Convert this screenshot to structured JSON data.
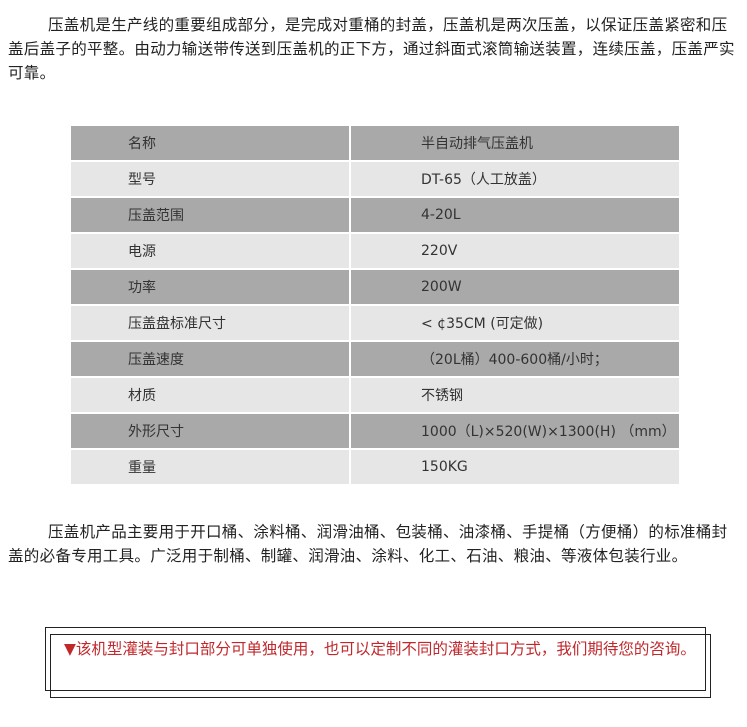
{
  "intro": "压盖机是生产线的重要组成部分，是完成对重桶的封盖，压盖机是两次压盖，以保证压盖紧密和压盖后盖子的平整。由动力输送带传送到压盖机的正下方，通过斜面式滚筒输送装置，连续压盖，压盖严实可靠。",
  "specs": [
    {
      "label": "名称",
      "value": "半自动排气压盖机"
    },
    {
      "label": "型号",
      "value": "DT-65（人工放盖）"
    },
    {
      "label": "压盖范围",
      "value": "4-20L"
    },
    {
      "label": "电源",
      "value": "220V"
    },
    {
      "label": "功率",
      "value": "200W"
    },
    {
      "label": "压盖盘标准尺寸",
      "value": "< ¢35CM (可定做)"
    },
    {
      "label": "压盖速度",
      "value": "（20L桶）400-600桶/小时；"
    },
    {
      "label": "材质",
      "value": "不锈钢"
    },
    {
      "label": "外形尺寸",
      "value": "1000（L)×520(W)×1300(H) （mm）"
    },
    {
      "label": "重量",
      "value": "150KG"
    }
  ],
  "usage": "压盖机产品主要用于开口桶、涂料桶、润滑油桶、包装桶、油漆桶、手提桶（方便桶）的标准桶封盖的必备专用工具。广泛用于制桶、制罐、润滑油、涂料、化工、石油、粮油、等液体包装行业。",
  "notice": {
    "icon": "▼",
    "text": "该机型灌装与封口部分可单独使用，也可以定制不同的灌装封口方式，我们期待您的咨询。",
    "color": "#c0282c"
  }
}
